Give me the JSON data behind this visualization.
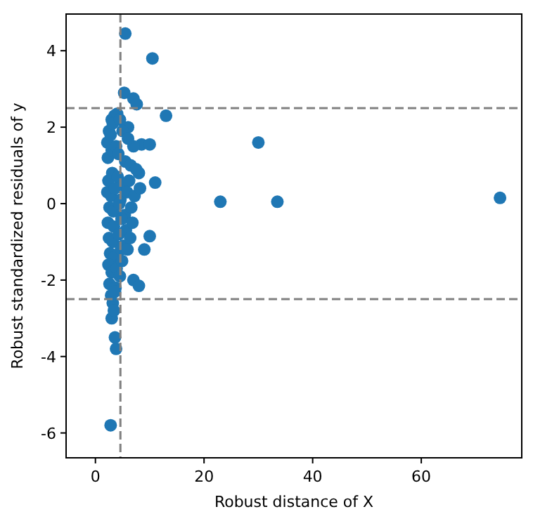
{
  "chart_data": {
    "type": "scatter",
    "xlabel": "Robust distance of X",
    "ylabel": "Robust standardized residuals of y",
    "xlim": [
      -5.4,
      78.5
    ],
    "ylim": [
      -6.65,
      4.96
    ],
    "xticks": [
      0,
      20,
      40,
      60
    ],
    "yticks": [
      -6,
      -4,
      -2,
      0,
      2,
      4
    ],
    "marker": "circle",
    "grid": false,
    "ref_lines": [
      {
        "axis": "y",
        "value": 2.5,
        "color": "#808080",
        "line_style": "dashed"
      },
      {
        "axis": "y",
        "value": -2.5,
        "color": "#808080",
        "line_style": "dashed"
      },
      {
        "axis": "x",
        "value": 4.6,
        "color": "#808080",
        "line_style": "dashed"
      }
    ],
    "series": [
      {
        "color": "#1f77b4",
        "x": [
          5.5,
          10.5,
          5.3,
          7,
          7.6,
          13,
          30,
          23,
          33.5,
          74.5,
          11,
          10,
          7,
          8,
          2.8,
          3.8,
          3.6,
          3,
          3.2,
          3.4,
          9,
          8.5,
          10,
          8,
          6,
          7,
          3,
          3.5,
          4,
          2.5,
          2.2,
          2.8,
          3.2,
          4.5,
          5,
          6,
          2.3,
          3,
          3.8,
          4.2,
          5.5,
          6.5,
          7.5,
          2.4,
          3.1,
          4.1,
          5.2,
          6.2,
          2.2,
          2.9,
          3.6,
          4.6,
          5.8,
          7.2,
          8.2,
          2.6,
          3.3,
          4.4,
          5.4,
          6.6,
          2.3,
          3.4,
          4.8,
          5.6,
          6.8,
          2.5,
          3.2,
          4.3,
          5.1,
          6.4,
          2.7,
          3.5,
          4.7,
          5.9,
          2.4,
          3,
          3.9,
          4.9,
          2.6,
          3.7,
          4.5,
          2.9,
          3.6
        ],
        "values": [
          4.45,
          3.8,
          2.9,
          2.75,
          2.6,
          2.3,
          1.6,
          0.05,
          0.05,
          0.15,
          0.55,
          -0.85,
          -2,
          -2.15,
          -5.8,
          -3.8,
          -3.5,
          -3,
          -2.6,
          -2.8,
          -1.2,
          1.55,
          1.55,
          0.8,
          2,
          1.5,
          2.2,
          2.3,
          2.35,
          1.9,
          1.6,
          1.8,
          2.1,
          2.2,
          1.9,
          1.7,
          1.2,
          1.4,
          1.5,
          1.3,
          1.1,
          1,
          0.9,
          0.6,
          0.8,
          0.7,
          0.5,
          0.6,
          0.3,
          0.2,
          0.4,
          0.1,
          0.3,
          0.2,
          0.4,
          -0.1,
          -0.2,
          0,
          -0.3,
          -0.1,
          -0.5,
          -0.6,
          -0.4,
          -0.7,
          -0.5,
          -0.9,
          -1,
          -0.8,
          -1.1,
          -0.9,
          -1.3,
          -1.4,
          -1.2,
          -1.2,
          -1.6,
          -1.8,
          -1.7,
          -1.5,
          -2.1,
          -2.2,
          -1.9,
          -2.4,
          -2.3
        ]
      }
    ]
  }
}
